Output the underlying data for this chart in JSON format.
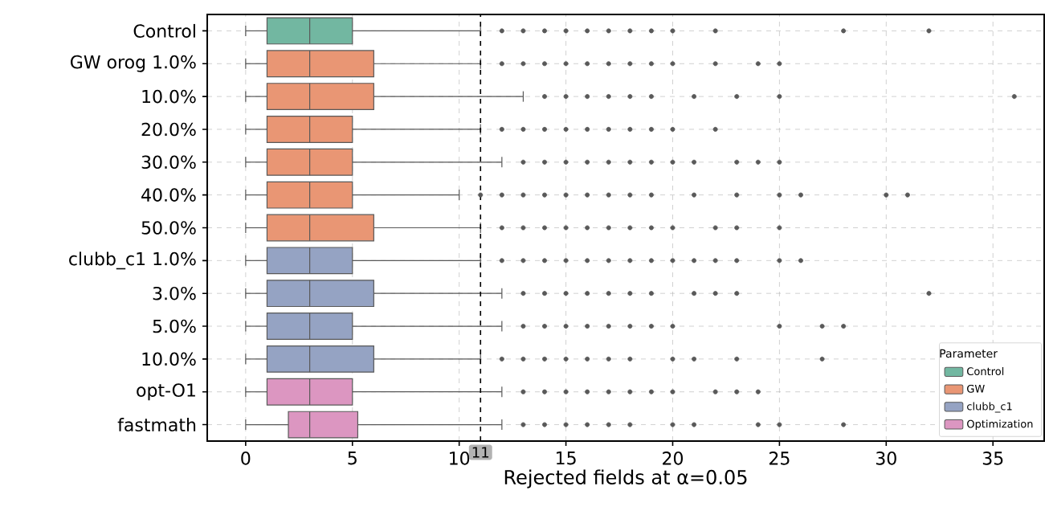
{
  "chart_data": {
    "type": "box",
    "orientation": "horizontal",
    "xlabel": "Rejected fields at α=0.05",
    "legend_title": "Parameter",
    "categories": [
      "Control",
      "GW orog 1.0%",
      "10.0%",
      "20.0%",
      "30.0%",
      "40.0%",
      "50.0%",
      "clubb_c1 1.0%",
      "3.0%",
      "5.0%",
      "10.0%",
      "opt-O1",
      "fastmath"
    ],
    "xlim": [
      -1.8,
      37.4
    ],
    "xticks": [
      0,
      5,
      10,
      15,
      20,
      25,
      30,
      35
    ],
    "grid": true,
    "legend": "bottom right",
    "marker": "circle",
    "ref_lines": [
      {
        "axis": "x",
        "value": 11,
        "label": "11",
        "line_style": "dashed",
        "color": "#000000"
      }
    ],
    "series": [
      {
        "name": "Control",
        "color": "#72b7a1",
        "boxes": [
          {
            "low": 0,
            "q1": 1,
            "median": 3,
            "q3": 5,
            "high": 11,
            "outliers": [
              12,
              13,
              14,
              15,
              16,
              17,
              18,
              19,
              20,
              22,
              28,
              32
            ]
          },
          null,
          null,
          null,
          null,
          null,
          null,
          null,
          null,
          null,
          null,
          null,
          null
        ]
      },
      {
        "name": "GW",
        "color": "#e99674",
        "boxes": [
          null,
          {
            "low": 0,
            "q1": 1,
            "median": 3,
            "q3": 6,
            "high": 11,
            "outliers": [
              12,
              13,
              14,
              15,
              16,
              17,
              18,
              19,
              20,
              22,
              24,
              25
            ]
          },
          {
            "low": 0,
            "q1": 1,
            "median": 3,
            "q3": 6,
            "high": 13,
            "outliers": [
              14,
              15,
              16,
              17,
              18,
              19,
              21,
              23,
              25,
              36
            ]
          },
          {
            "low": 0,
            "q1": 1,
            "median": 3,
            "q3": 5,
            "high": 11,
            "outliers": [
              12,
              13,
              14,
              15,
              16,
              17,
              18,
              19,
              20,
              22
            ]
          },
          {
            "low": 0,
            "q1": 1,
            "median": 3,
            "q3": 5,
            "high": 12,
            "outliers": [
              13,
              14,
              15,
              16,
              17,
              18,
              19,
              20,
              21,
              23,
              24,
              25
            ]
          },
          {
            "low": 0,
            "q1": 1,
            "median": 3,
            "q3": 5,
            "high": 10,
            "outliers": [
              11,
              12,
              13,
              14,
              15,
              16,
              17,
              18,
              19,
              21,
              23,
              25,
              26,
              30,
              31
            ]
          },
          {
            "low": 0,
            "q1": 1,
            "median": 3,
            "q3": 6,
            "high": 11,
            "outliers": [
              12,
              13,
              14,
              15,
              16,
              17,
              18,
              19,
              20,
              22,
              23,
              25
            ]
          },
          null,
          null,
          null,
          null,
          null,
          null
        ]
      },
      {
        "name": "clubb_c1",
        "color": "#95a3c3",
        "boxes": [
          null,
          null,
          null,
          null,
          null,
          null,
          null,
          {
            "low": 0,
            "q1": 1,
            "median": 3,
            "q3": 5,
            "high": 11,
            "outliers": [
              12,
              13,
              14,
              15,
              16,
              17,
              18,
              19,
              20,
              21,
              22,
              23,
              25,
              26
            ]
          },
          {
            "low": 0,
            "q1": 1,
            "median": 3,
            "q3": 6,
            "high": 12,
            "outliers": [
              13,
              14,
              15,
              16,
              17,
              18,
              19,
              21,
              22,
              23,
              32
            ]
          },
          {
            "low": 0,
            "q1": 1,
            "median": 3,
            "q3": 5,
            "high": 12,
            "outliers": [
              13,
              14,
              15,
              16,
              17,
              18,
              19,
              20,
              25,
              27,
              28
            ]
          },
          {
            "low": 0,
            "q1": 1,
            "median": 3,
            "q3": 6,
            "high": 11,
            "outliers": [
              12,
              13,
              14,
              15,
              16,
              17,
              18,
              20,
              21,
              23,
              27
            ]
          },
          null,
          null
        ]
      },
      {
        "name": "Optimization",
        "color": "#dc96c1",
        "boxes": [
          null,
          null,
          null,
          null,
          null,
          null,
          null,
          null,
          null,
          null,
          null,
          {
            "low": 0,
            "q1": 1,
            "median": 3,
            "q3": 5,
            "high": 12,
            "outliers": [
              13,
              14,
              15,
              16,
              17,
              18,
              19,
              20,
              22,
              23,
              24
            ]
          },
          {
            "low": 0,
            "q1": 2,
            "median": 3,
            "q3": 5.25,
            "high": 12,
            "outliers": [
              13,
              14,
              15,
              16,
              17,
              18,
              20,
              21,
              24,
              25,
              28
            ]
          }
        ]
      }
    ]
  }
}
